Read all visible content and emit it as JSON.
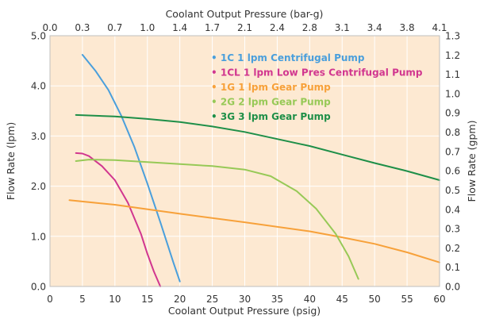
{
  "chart_data": {
    "type": "line",
    "title": "",
    "xlabel": "Coolant Output Pressure (psig)",
    "x2label": "Coolant Output Pressure (bar-g)",
    "ylabel": "Flow Rate (lpm)",
    "y2label": "Flow Rate (gpm)",
    "xlim": [
      0,
      60
    ],
    "ylim": [
      0,
      5
    ],
    "x_ticks": [
      0,
      5,
      10,
      15,
      20,
      25,
      30,
      35,
      40,
      45,
      50,
      55,
      60
    ],
    "y_ticks": [
      "0.0",
      "1.0",
      "2.0",
      "3.0",
      "4.0",
      "5.0"
    ],
    "x2_ticks": [
      "0.0",
      "0.3",
      "0.7",
      "1.0",
      "1.4",
      "1.7",
      "2.1",
      "2.4",
      "2.8",
      "3.1",
      "3.4",
      "3.8",
      "4.1"
    ],
    "y2_ticks": [
      "0.0",
      "0.1",
      "0.2",
      "0.3",
      "0.4",
      "0.5",
      "0.6",
      "0.7",
      "0.8",
      "0.9",
      "1.0",
      "1.1",
      "1.2",
      "1.3"
    ],
    "grid": true,
    "legend_position": "top-right",
    "background_color": "#fde9d2",
    "series": [
      {
        "name": "1C 1 lpm Centrifugal Pump",
        "color": "#4a9fdc",
        "x": [
          5,
          7,
          9,
          11,
          13,
          15,
          17,
          19,
          20
        ],
        "y": [
          4.62,
          4.3,
          3.92,
          3.4,
          2.78,
          2.05,
          1.28,
          0.48,
          0.1
        ]
      },
      {
        "name": "1CL 1 lpm Low Pres Centrifugal Pump",
        "color": "#d1368f",
        "x": [
          4,
          5,
          6,
          8,
          10,
          12,
          14,
          15,
          16,
          17
        ],
        "y": [
          2.66,
          2.65,
          2.6,
          2.4,
          2.12,
          1.67,
          1.05,
          0.65,
          0.3,
          0.0
        ]
      },
      {
        "name": "1G 1 lpm Gear Pump",
        "color": "#f7a13a",
        "x": [
          3,
          10,
          20,
          30,
          40,
          45,
          50,
          55,
          60
        ],
        "y": [
          1.72,
          1.63,
          1.45,
          1.28,
          1.1,
          0.98,
          0.85,
          0.68,
          0.48
        ]
      },
      {
        "name": "2G 2 lpm Gear Pump",
        "color": "#97c957",
        "x": [
          4,
          6,
          10,
          15,
          20,
          25,
          30,
          34,
          38,
          41,
          44,
          46,
          47.5
        ],
        "y": [
          2.5,
          2.53,
          2.52,
          2.48,
          2.44,
          2.4,
          2.33,
          2.2,
          1.9,
          1.55,
          1.05,
          0.6,
          0.15
        ]
      },
      {
        "name": "3G 3 lpm Gear Pump",
        "color": "#1e8f48",
        "x": [
          4,
          10,
          15,
          20,
          25,
          30,
          35,
          40,
          45,
          50,
          55,
          60
        ],
        "y": [
          3.42,
          3.39,
          3.34,
          3.28,
          3.19,
          3.08,
          2.94,
          2.8,
          2.63,
          2.46,
          2.3,
          2.12
        ]
      }
    ]
  }
}
